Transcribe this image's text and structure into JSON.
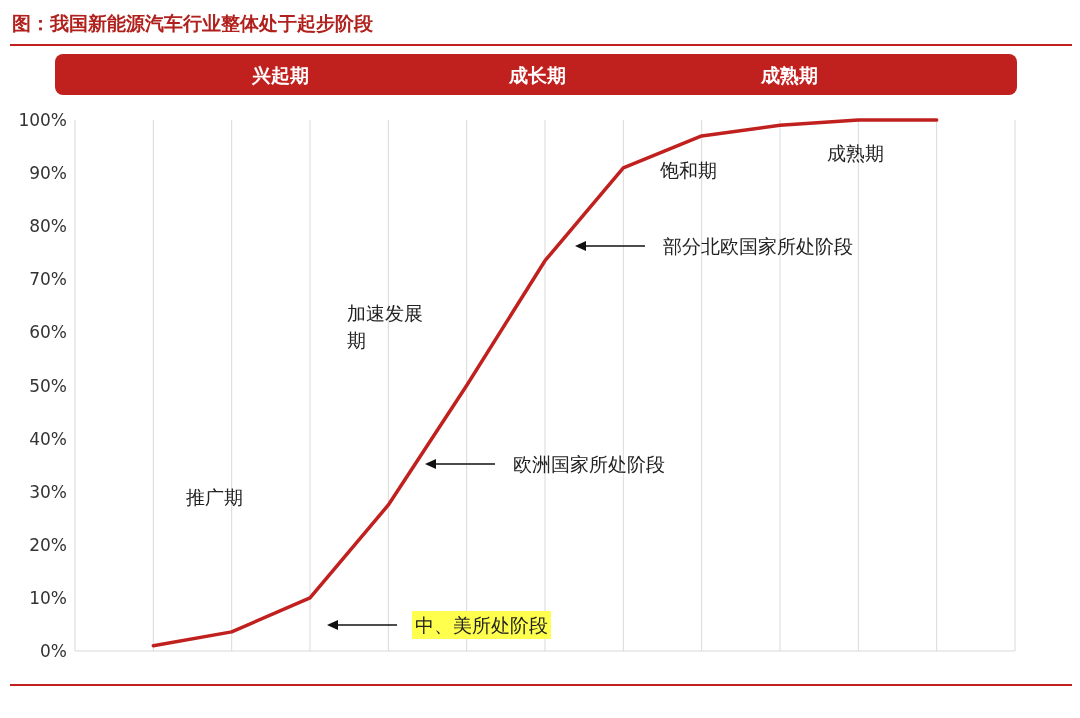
{
  "chart_data": {
    "type": "line",
    "title": "图：我国新能源汽车行业整体处于起步阶段",
    "categories": [
      null,
      null,
      null,
      null,
      null,
      null,
      null,
      null,
      null,
      null,
      null,
      null,
      null
    ],
    "series": [
      {
        "color": "#c0201e",
        "values": [
          null,
          1,
          3.6,
          10,
          27.5,
          50,
          73.5,
          91,
          97,
          99,
          100,
          100,
          null
        ]
      }
    ],
    "ylim": [
      0,
      100
    ],
    "yticks": [
      {
        "value": 0,
        "label": "0%"
      },
      {
        "value": 10,
        "label": "10%"
      },
      {
        "value": 20,
        "label": "20%"
      },
      {
        "value": 30,
        "label": "30%"
      },
      {
        "value": 40,
        "label": "40%"
      },
      {
        "value": 50,
        "label": "50%"
      },
      {
        "value": 60,
        "label": "60%"
      },
      {
        "value": 70,
        "label": "70%"
      },
      {
        "value": 80,
        "label": "80%"
      },
      {
        "value": 90,
        "label": "90%"
      },
      {
        "value": 100,
        "label": "100%"
      }
    ],
    "grid": "x",
    "tick_labels": "y",
    "marker": "none",
    "line_style": "solid",
    "annotations": [
      "兴起期",
      "成长期",
      "成熟期",
      "推广期",
      "加速发展期",
      "饱和期",
      "成熟期",
      "中、美所处阶段",
      "欧洲国家所处阶段",
      "部分北欧国家所处阶段"
    ]
  }
}
